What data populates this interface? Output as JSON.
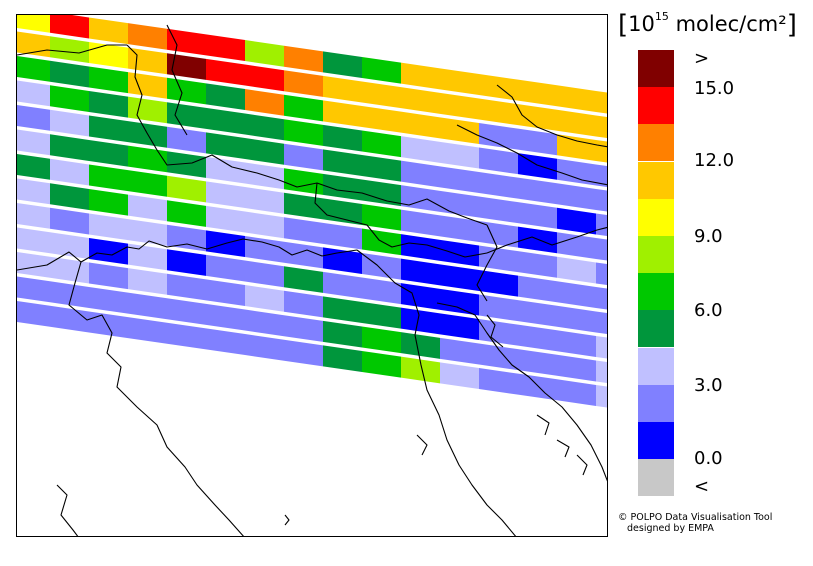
{
  "units": {
    "prefix": "10",
    "exponent": "15",
    "suffix": "molec/cm²"
  },
  "legend": {
    "bins": [
      {
        "color": "#800000"
      },
      {
        "color": "#ff0000"
      },
      {
        "color": "#ff8000"
      },
      {
        "color": "#ffc800"
      },
      {
        "color": "#ffff00"
      },
      {
        "color": "#a0f000"
      },
      {
        "color": "#00c800"
      },
      {
        "color": "#00963c"
      },
      {
        "color": "#c0c0ff"
      },
      {
        "color": "#8080ff"
      },
      {
        "color": "#0000ff"
      },
      {
        "color": "#c8c8c8"
      }
    ],
    "labels": [
      ">",
      "15.0",
      "12.0",
      "9.0",
      "6.0",
      "3.0",
      "0.0",
      "<"
    ]
  },
  "credit": {
    "line1": "© POLPO Data Visualisation Tool",
    "line2": "designed by EMPA"
  },
  "satellite_swaths": [
    [
      "4",
      "1",
      "3",
      "2",
      "1",
      "1",
      "5",
      "2",
      "7",
      "6",
      "3",
      "3",
      "3",
      "3",
      "3",
      "3",
      "3"
    ],
    [
      "3",
      "5",
      "4",
      "3",
      "0",
      "1",
      "1",
      "2",
      "3",
      "3",
      "3",
      "3",
      "3",
      "3",
      "3",
      "3",
      "3"
    ],
    [
      "6",
      "7",
      "6",
      "3",
      "6",
      "7",
      "2",
      "6",
      "3",
      "3",
      "3",
      "3",
      "9",
      "9",
      "3",
      "3",
      "3"
    ],
    [
      "8",
      "6",
      "7",
      "5",
      "7",
      "7",
      "7",
      "6",
      "7",
      "6",
      "8",
      "8",
      "9",
      "10",
      "9",
      "9",
      "9"
    ],
    [
      "9",
      "8",
      "7",
      "7",
      "9",
      "7",
      "7",
      "9",
      "7",
      "7",
      "9",
      "9",
      "9",
      "9",
      "9",
      "9",
      "9"
    ],
    [
      "8",
      "7",
      "7",
      "6",
      "7",
      "8",
      "8",
      "6",
      "7",
      "7",
      "9",
      "9",
      "9",
      "9",
      "10",
      "9",
      "9"
    ],
    [
      "7",
      "8",
      "6",
      "6",
      "5",
      "8",
      "8",
      "7",
      "7",
      "6",
      "9",
      "9",
      "9",
      "10",
      "9",
      "9",
      "9"
    ],
    [
      "8",
      "7",
      "6",
      "8",
      "6",
      "8",
      "8",
      "9",
      "9",
      "6",
      "10",
      "10",
      "9",
      "9",
      "8",
      "9",
      "9"
    ],
    [
      "8",
      "9",
      "8",
      "8",
      "9",
      "10",
      "9",
      "9",
      "10",
      "9",
      "10",
      "10",
      "10",
      "9",
      "9",
      "9",
      "9"
    ],
    [
      "8",
      "8",
      "10",
      "8",
      "10",
      "9",
      "9",
      "7",
      "9",
      "9",
      "10",
      "10",
      "9",
      "9",
      "9",
      "9",
      "9"
    ],
    [
      "8",
      "8",
      "9",
      "8",
      "9",
      "9",
      "8",
      "9",
      "7",
      "7",
      "10",
      "10",
      "9",
      "9",
      "9",
      "8",
      "8"
    ],
    [
      "9",
      "9",
      "9",
      "9",
      "9",
      "9",
      "9",
      "9",
      "7",
      "6",
      "7",
      "9",
      "9",
      "9",
      "9",
      "8",
      "8"
    ],
    [
      "9",
      "9",
      "9",
      "9",
      "9",
      "9",
      "9",
      "9",
      "7",
      "6",
      "5",
      "8",
      "9",
      "9",
      "9",
      "8",
      "8"
    ]
  ]
}
